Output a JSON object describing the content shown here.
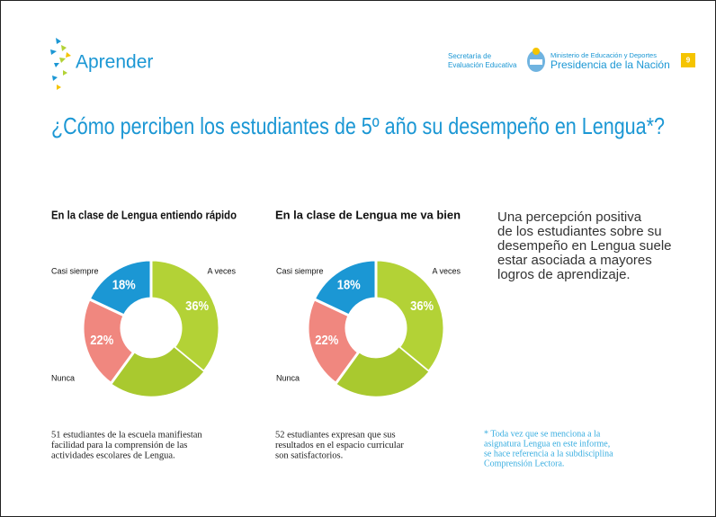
{
  "header": {
    "logo": "Aprender",
    "secretaria": [
      "Secretaría de",
      "Evaluación Educativa"
    ],
    "ministerio": "Ministerio de Educación y Deportes",
    "presidencia": "Presidencia de la Nación",
    "page_number": "9"
  },
  "title": "¿Cómo perciben los estudiantes de 5º año su desempeño en Lengua*?",
  "chart_data": [
    {
      "type": "donut",
      "title": "En la clase de Lengua entiendo rápido",
      "categories": [
        "A veces",
        null,
        "Nunca",
        "Casi siempre"
      ],
      "values": [
        36,
        24,
        22,
        18
      ],
      "value_labels": [
        "36%",
        null,
        "22%",
        "18%"
      ],
      "colors": [
        "#b3d236",
        "#a9c92f",
        "#f0877f",
        "#1b97d4"
      ]
    },
    {
      "type": "donut",
      "title": "En la clase de Lengua me va bien",
      "categories": [
        "A veces",
        null,
        "Nunca",
        "Casi siempre"
      ],
      "values": [
        36,
        24,
        22,
        18
      ],
      "value_labels": [
        "36%",
        null,
        "22%",
        "18%"
      ],
      "colors": [
        "#b3d236",
        "#a9c92f",
        "#f0877f",
        "#1b97d4"
      ]
    }
  ],
  "captions": [
    [
      "51 estudiantes de la escuela manifiestan",
      "facilidad para la comprensión de las",
      "actividades escolares de Lengua."
    ],
    [
      "52 estudiantes expresan que sus",
      "resultados en el espacio curricular",
      "son satisfactorios."
    ]
  ],
  "side_text": [
    "Una percepción positiva",
    "de los estudiantes sobre su",
    "desempeño en Lengua suele",
    "estar asociada a mayores",
    "logros de aprendizaje."
  ],
  "footnote": [
    "* Toda vez que se menciona a la",
    "asignatura Lengua en este informe,",
    "se hace referencia a la subdisciplina",
    "Comprensión Lectora."
  ]
}
